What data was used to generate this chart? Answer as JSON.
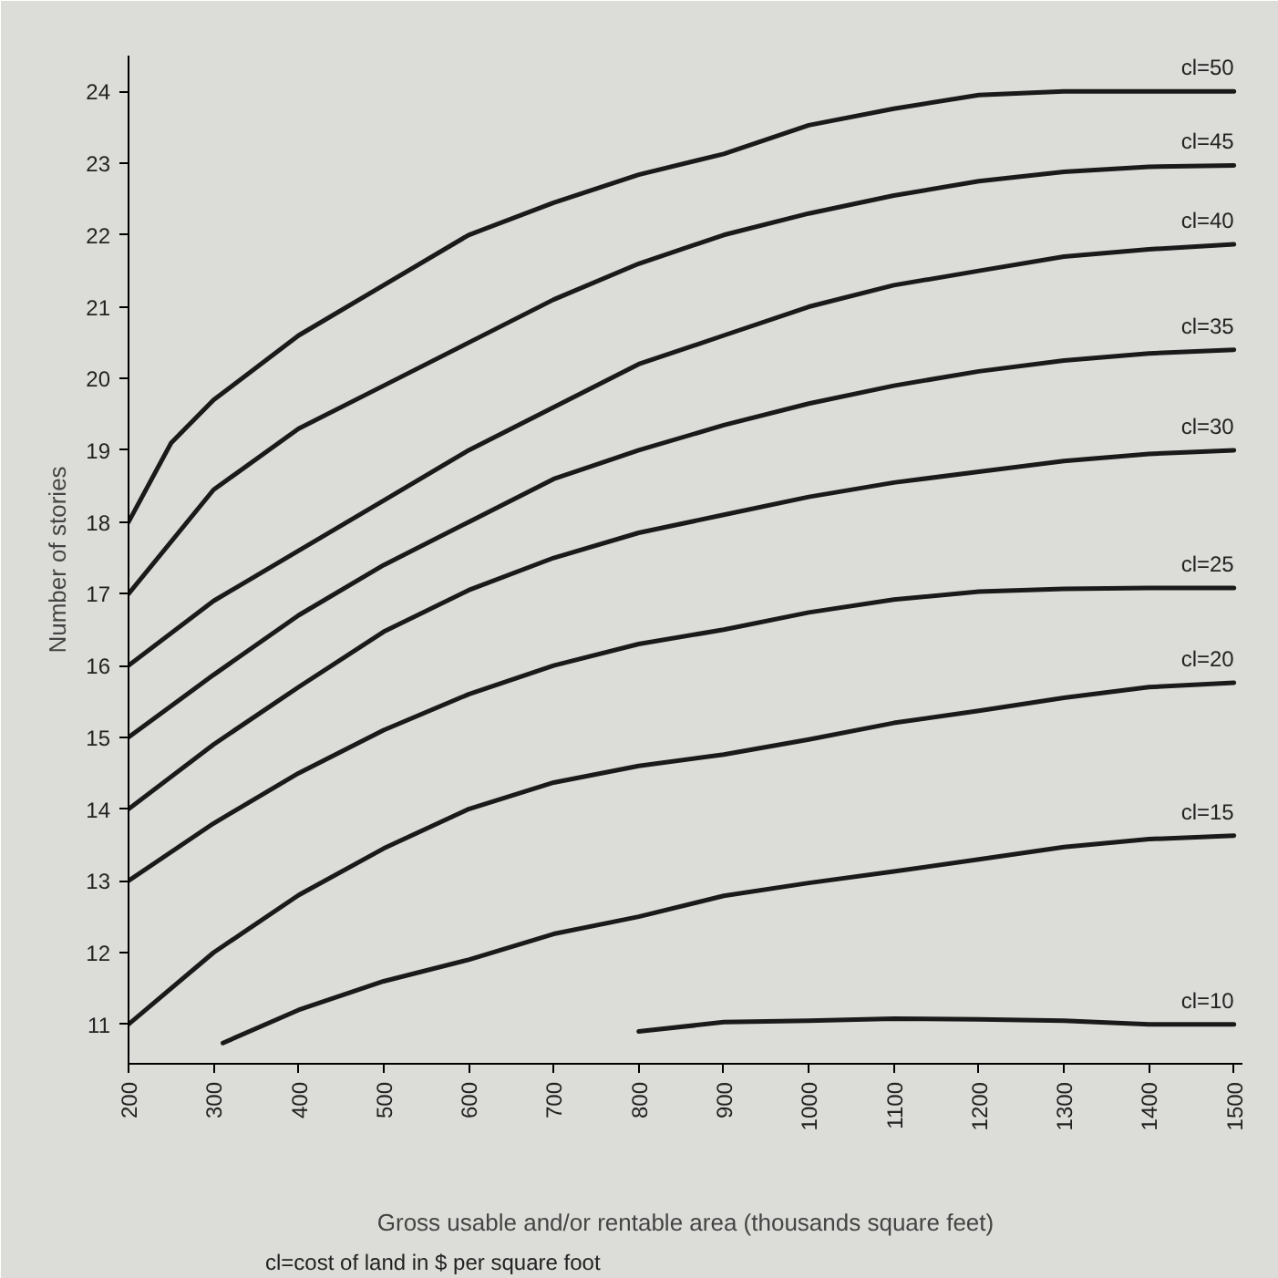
{
  "chart_data": {
    "type": "line",
    "xlabel": "Gross usable and/or rentable area (thousands square feet)",
    "ylabel": "Number of stories",
    "annotations": [
      "cl=cost of land in $ per square foot"
    ],
    "xlim": [
      200,
      1510
    ],
    "ylim": [
      10.45,
      24.5
    ],
    "xticks": [
      200,
      300,
      400,
      500,
      600,
      700,
      800,
      900,
      1000,
      1100,
      1200,
      1300,
      1400,
      1500
    ],
    "yticks": [
      11,
      12,
      13,
      14,
      15,
      16,
      17,
      18,
      19,
      20,
      21,
      22,
      23,
      24
    ],
    "grid": false,
    "legend": false,
    "marker": "none",
    "line_style": "solid",
    "series": [
      {
        "name": "cl=50",
        "color": "#1a1a1a",
        "x": [
          200,
          250,
          300,
          400,
          500,
          600,
          700,
          800,
          900,
          1000,
          1100,
          1200,
          1300,
          1400,
          1500
        ],
        "values": [
          18,
          19.1,
          19.7,
          20.6,
          21.3,
          22.0,
          22.45,
          22.84,
          23.13,
          23.53,
          23.76,
          23.95,
          24.0,
          24.0,
          24.0
        ]
      },
      {
        "name": "cl=45",
        "color": "#1a1a1a",
        "x": [
          200,
          300,
          400,
          500,
          600,
          700,
          800,
          900,
          1000,
          1100,
          1200,
          1300,
          1400,
          1500
        ],
        "values": [
          17,
          18.45,
          19.3,
          19.9,
          20.5,
          21.1,
          21.6,
          22.0,
          22.3,
          22.55,
          22.75,
          22.88,
          22.95,
          22.97
        ]
      },
      {
        "name": "cl=40",
        "color": "#1a1a1a",
        "x": [
          200,
          300,
          400,
          500,
          600,
          700,
          800,
          900,
          1000,
          1100,
          1200,
          1300,
          1400,
          1500
        ],
        "values": [
          16,
          16.9,
          17.6,
          18.3,
          19.0,
          19.6,
          20.2,
          20.6,
          21.0,
          21.3,
          21.5,
          21.7,
          21.8,
          21.87
        ]
      },
      {
        "name": "cl=35",
        "color": "#1a1a1a",
        "x": [
          200,
          300,
          400,
          500,
          600,
          700,
          800,
          900,
          1000,
          1100,
          1200,
          1300,
          1400,
          1500
        ],
        "values": [
          15,
          15.87,
          16.7,
          17.4,
          18.0,
          18.6,
          19.0,
          19.35,
          19.65,
          19.9,
          20.1,
          20.25,
          20.35,
          20.4
        ]
      },
      {
        "name": "cl=30",
        "color": "#1a1a1a",
        "x": [
          200,
          300,
          400,
          500,
          600,
          700,
          800,
          900,
          1000,
          1100,
          1200,
          1300,
          1400,
          1500
        ],
        "values": [
          14,
          14.9,
          15.7,
          16.47,
          17.05,
          17.5,
          17.85,
          18.1,
          18.35,
          18.55,
          18.7,
          18.85,
          18.95,
          19.0
        ]
      },
      {
        "name": "cl=25",
        "color": "#1a1a1a",
        "x": [
          200,
          300,
          400,
          500,
          600,
          700,
          800,
          900,
          1000,
          1100,
          1200,
          1300,
          1400,
          1500
        ],
        "values": [
          13,
          13.8,
          14.5,
          15.1,
          15.6,
          16.0,
          16.3,
          16.5,
          16.74,
          16.92,
          17.03,
          17.07,
          17.08,
          17.08
        ]
      },
      {
        "name": "cl=20",
        "color": "#1a1a1a",
        "x": [
          200,
          300,
          400,
          500,
          600,
          700,
          800,
          900,
          1000,
          1100,
          1200,
          1300,
          1400,
          1500
        ],
        "values": [
          11,
          12.0,
          12.8,
          13.45,
          14.0,
          14.37,
          14.6,
          14.76,
          14.97,
          15.2,
          15.37,
          15.55,
          15.7,
          15.76
        ]
      },
      {
        "name": "cl=15",
        "color": "#1a1a1a",
        "x": [
          311,
          400,
          500,
          600,
          700,
          800,
          900,
          1000,
          1100,
          1200,
          1300,
          1400,
          1500
        ],
        "values": [
          10.74,
          11.2,
          11.6,
          11.9,
          12.26,
          12.5,
          12.79,
          12.97,
          13.13,
          13.3,
          13.47,
          13.58,
          13.63
        ]
      },
      {
        "name": "cl=10",
        "color": "#1a1a1a",
        "x": [
          800,
          900,
          1000,
          1100,
          1200,
          1300,
          1400,
          1500
        ],
        "values": [
          10.9,
          11.03,
          11.05,
          11.08,
          11.07,
          11.05,
          11.0,
          11.0
        ]
      }
    ]
  }
}
